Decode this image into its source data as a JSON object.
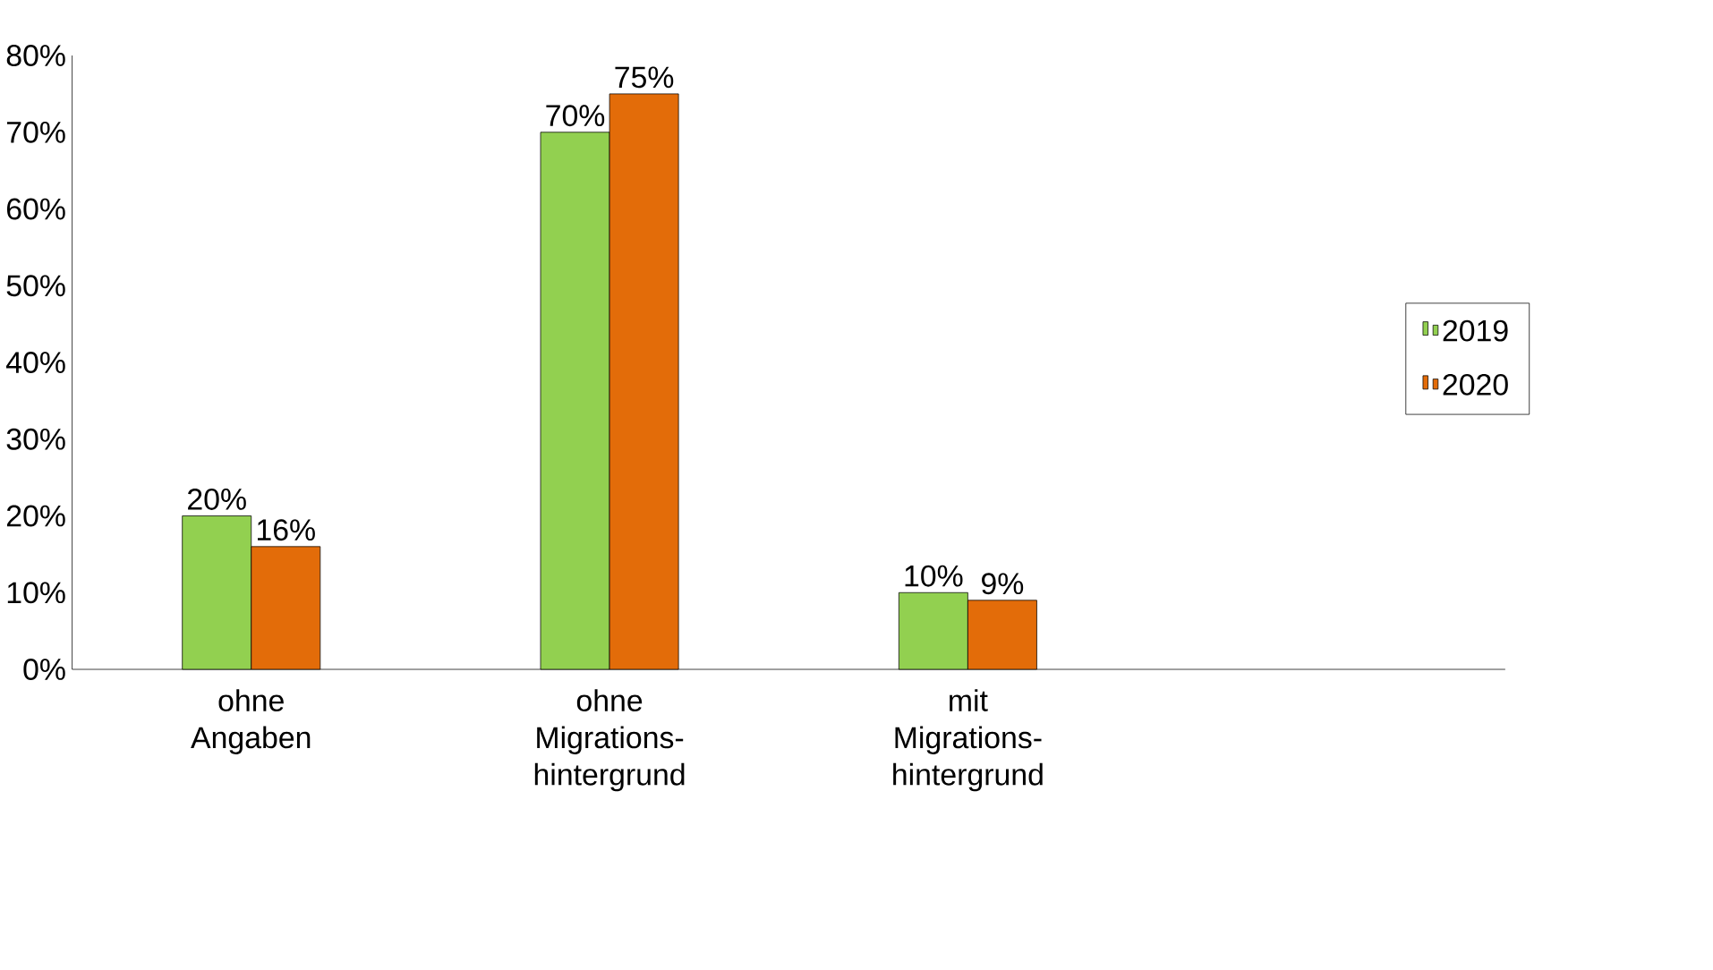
{
  "chart_data": {
    "type": "bar",
    "categories": [
      "ohne Angaben",
      "ohne Migrations-hintergrund",
      "mit Migrations-hintergrund"
    ],
    "series": [
      {
        "name": "2019",
        "color": "#92d050",
        "values": [
          20,
          70,
          10
        ],
        "value_labels": [
          "20%",
          "70%",
          "10%"
        ]
      },
      {
        "name": "2020",
        "color": "#e36c09",
        "values": [
          16,
          75,
          9
        ],
        "value_labels": [
          "16%",
          "75%",
          "9%"
        ]
      }
    ],
    "ylim": [
      0,
      80
    ],
    "yticks": [
      {
        "value": 0,
        "label": "0%"
      },
      {
        "value": 10,
        "label": "10%"
      },
      {
        "value": 20,
        "label": "20%"
      },
      {
        "value": 30,
        "label": "30%"
      },
      {
        "value": 40,
        "label": "40%"
      },
      {
        "value": 50,
        "label": "50%"
      },
      {
        "value": 60,
        "label": "60%"
      },
      {
        "value": 70,
        "label": "70%"
      },
      {
        "value": 80,
        "label": "80%"
      }
    ],
    "legend": "right"
  }
}
